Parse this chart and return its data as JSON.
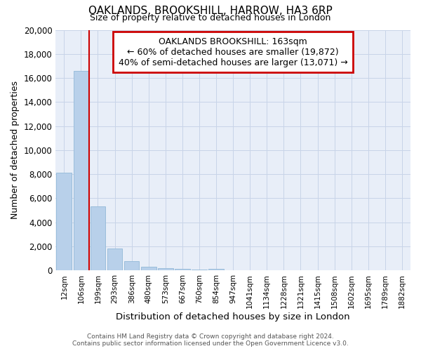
{
  "title": "OAKLANDS, BROOKSHILL, HARROW, HA3 6RP",
  "subtitle": "Size of property relative to detached houses in London",
  "xlabel": "Distribution of detached houses by size in London",
  "ylabel": "Number of detached properties",
  "footer_line1": "Contains HM Land Registry data © Crown copyright and database right 2024.",
  "footer_line2": "Contains public sector information licensed under the Open Government Licence v3.0.",
  "categories": [
    "12sqm",
    "106sqm",
    "199sqm",
    "293sqm",
    "386sqm",
    "480sqm",
    "573sqm",
    "667sqm",
    "760sqm",
    "854sqm",
    "947sqm",
    "1041sqm",
    "1134sqm",
    "1228sqm",
    "1321sqm",
    "1415sqm",
    "1508sqm",
    "1602sqm",
    "1695sqm",
    "1789sqm",
    "1882sqm"
  ],
  "values": [
    8100,
    16600,
    5300,
    1800,
    750,
    320,
    200,
    130,
    100,
    130,
    0,
    0,
    0,
    0,
    0,
    0,
    0,
    0,
    0,
    0,
    0
  ],
  "bar_color": "#b8d0ea",
  "bar_edge_color": "#92b8d8",
  "vline_color": "#cc0000",
  "vline_pos": 1.5,
  "ylim": [
    0,
    20000
  ],
  "yticks": [
    0,
    2000,
    4000,
    6000,
    8000,
    10000,
    12000,
    14000,
    16000,
    18000,
    20000
  ],
  "annotation_title": "OAKLANDS BROOKSHILL: 163sqm",
  "annotation_line1": "← 60% of detached houses are smaller (19,872)",
  "annotation_line2": "40% of semi-detached houses are larger (13,071) →",
  "annotation_box_color": "#ffffff",
  "annotation_box_edge": "#cc0000",
  "grid_color": "#c8d4e8",
  "bg_color": "#e8eef8"
}
